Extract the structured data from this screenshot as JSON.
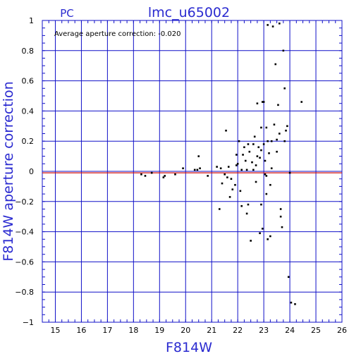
{
  "header": {
    "detector": "PC",
    "title": "lmc_u65002"
  },
  "annotation": "Average aperture correction: -0.020",
  "colors": {
    "axis_text": "#2a2ad0",
    "grid": "#1010c8",
    "reference_line": "#d01010",
    "points": "#000000"
  },
  "chart_data": {
    "type": "scatter",
    "title": "lmc_u65002",
    "xlabel": "F814W",
    "ylabel": "F814W aperture correction",
    "xlim": [
      14.5,
      26
    ],
    "ylim": [
      -1,
      1
    ],
    "x_ticks": [
      "15",
      "16",
      "17",
      "18",
      "19",
      "20",
      "21",
      "22",
      "23",
      "24",
      "25",
      "26"
    ],
    "y_ticks": [
      "1",
      "0.8",
      "0.6",
      "0.4",
      "0.2",
      "0",
      "−0.2",
      "−0.4",
      "−0.6",
      "−0.8",
      "−1"
    ],
    "grid": true,
    "reference_line": {
      "y": -0.01,
      "color": "#d01010"
    },
    "points": [
      [
        18.3,
        -0.02
      ],
      [
        18.45,
        -0.03
      ],
      [
        18.7,
        -0.01
      ],
      [
        19.15,
        -0.04
      ],
      [
        19.2,
        -0.03
      ],
      [
        19.6,
        -0.02
      ],
      [
        19.9,
        0.02
      ],
      [
        20.35,
        0.01
      ],
      [
        20.45,
        0.01
      ],
      [
        20.5,
        0.1
      ],
      [
        20.55,
        0.02
      ],
      [
        20.85,
        -0.03
      ],
      [
        21.2,
        0.03
      ],
      [
        21.3,
        -0.25
      ],
      [
        21.35,
        0.02
      ],
      [
        21.4,
        -0.08
      ],
      [
        21.5,
        -0.02
      ],
      [
        21.55,
        0.27
      ],
      [
        21.6,
        -0.04
      ],
      [
        21.65,
        0.03
      ],
      [
        21.75,
        -0.05
      ],
      [
        21.8,
        -0.12
      ],
      [
        21.9,
        -0.09
      ],
      [
        21.95,
        0.11
      ],
      [
        22.0,
        0.05
      ],
      [
        22.05,
        0.2
      ],
      [
        22.1,
        -0.13
      ],
      [
        22.15,
        0.01
      ],
      [
        22.15,
        -0.23
      ],
      [
        22.2,
        0.11
      ],
      [
        22.3,
        0.07
      ],
      [
        22.35,
        0.01
      ],
      [
        22.35,
        -0.28
      ],
      [
        22.4,
        0.18
      ],
      [
        22.45,
        0.13
      ],
      [
        22.5,
        -0.46
      ],
      [
        22.55,
        0.06
      ],
      [
        22.6,
        0.18
      ],
      [
        22.65,
        0.23
      ],
      [
        22.7,
        0.04
      ],
      [
        22.75,
        0.45
      ],
      [
        22.75,
        0.1
      ],
      [
        22.8,
        0.16
      ],
      [
        22.85,
        0.09
      ],
      [
        22.85,
        -0.41
      ],
      [
        22.9,
        0.29
      ],
      [
        22.9,
        0.14
      ],
      [
        22.95,
        0.46
      ],
      [
        22.95,
        -0.38
      ],
      [
        23.0,
        0.46
      ],
      [
        23.0,
        0.18
      ],
      [
        23.05,
        0.07
      ],
      [
        23.05,
        -0.02
      ],
      [
        23.1,
        0.29
      ],
      [
        23.1,
        -0.15
      ],
      [
        23.15,
        0.2
      ],
      [
        23.15,
        -0.45
      ],
      [
        23.15,
        0.97
      ],
      [
        23.2,
        0.12
      ],
      [
        23.25,
        -0.43
      ],
      [
        23.3,
        0.2
      ],
      [
        23.3,
        0.02
      ],
      [
        23.35,
        0.96
      ],
      [
        23.4,
        0.31
      ],
      [
        23.45,
        0.71
      ],
      [
        23.5,
        0.21
      ],
      [
        23.55,
        0.44
      ],
      [
        23.6,
        0.98
      ],
      [
        23.6,
        0.25
      ],
      [
        23.65,
        -0.25
      ],
      [
        23.65,
        -0.3
      ],
      [
        23.7,
        -0.37
      ],
      [
        23.75,
        0.8
      ],
      [
        23.8,
        0.55
      ],
      [
        23.85,
        0.27
      ],
      [
        23.9,
        0.3
      ],
      [
        23.95,
        -0.7
      ],
      [
        24.0,
        -0.01
      ],
      [
        24.05,
        -0.87
      ],
      [
        24.2,
        -0.88
      ],
      [
        24.45,
        0.46
      ],
      [
        22.9,
        -0.22
      ],
      [
        23.25,
        -0.09
      ],
      [
        22.4,
        -0.22
      ],
      [
        21.95,
        0.04
      ],
      [
        22.6,
        0.01
      ],
      [
        23.8,
        0.2
      ],
      [
        23.1,
        -0.03
      ],
      [
        22.7,
        -0.07
      ],
      [
        23.5,
        0.13
      ],
      [
        21.7,
        -0.17
      ],
      [
        22.25,
        0.16
      ]
    ]
  }
}
